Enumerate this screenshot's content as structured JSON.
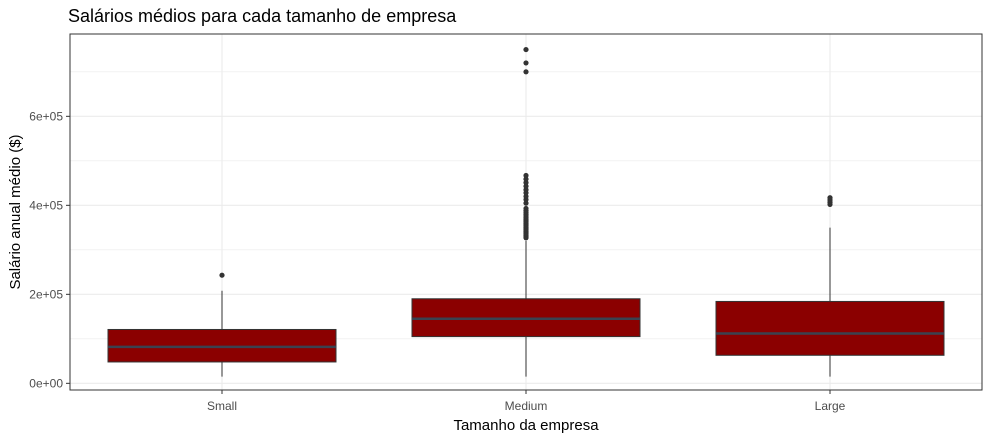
{
  "chart_data": {
    "type": "boxplot",
    "title": "Salários médios para cada tamanho de empresa",
    "xlabel": "Tamanho da empresa",
    "ylabel": "Salário anual médio ($)",
    "categories": [
      "Small",
      "Medium",
      "Large"
    ],
    "yticks": [
      0,
      200000,
      400000,
      600000
    ],
    "ytick_labels": [
      "0e+00",
      "2e+05",
      "4e+05",
      "6e+05"
    ],
    "ylim": [
      -15000,
      785000
    ],
    "grid": true,
    "colors": {
      "box_fill": "#8b0000",
      "median": "#3a4250",
      "outlier": "#333333",
      "grid": "#ebebeb",
      "panel_border": "#333333"
    },
    "boxes": [
      {
        "category": "Small",
        "lower_whisker": 15000,
        "q1": 48000,
        "median": 82000,
        "q3": 121000,
        "upper_whisker": 208000,
        "outliers": [
          243000
        ]
      },
      {
        "category": "Medium",
        "lower_whisker": 15000,
        "q1": 105000,
        "median": 145000,
        "q3": 190000,
        "upper_whisker": 320000,
        "outliers": [
          327000,
          330000,
          333000,
          336000,
          339000,
          342000,
          345000,
          348000,
          351000,
          354000,
          357000,
          360000,
          363000,
          366000,
          369000,
          372000,
          376000,
          380000,
          384000,
          388000,
          393000,
          405000,
          413000,
          420000,
          428000,
          435000,
          443000,
          451000,
          459000,
          467000,
          700000,
          720000,
          750000
        ]
      },
      {
        "category": "Large",
        "lower_whisker": 15000,
        "q1": 63000,
        "median": 112000,
        "q3": 184000,
        "upper_whisker": 350000,
        "outliers": [
          402000,
          407000,
          412000,
          417000
        ]
      }
    ]
  }
}
